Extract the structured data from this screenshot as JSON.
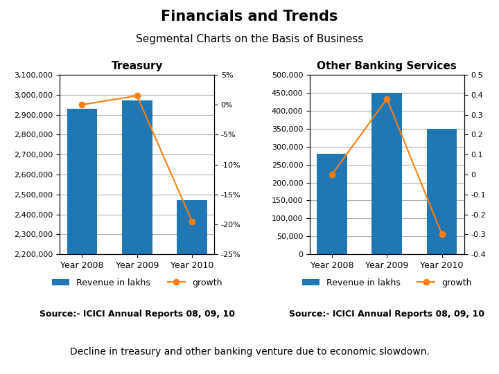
{
  "title": "Financials and Trends",
  "subtitle": "Segmental Charts on the Basis of Business",
  "annotations": [
    "Decline in treasury and other banking venture due to economic slowdown."
  ],
  "chart_data": [
    {
      "type": "bar",
      "title": "Treasury",
      "categories": [
        "Year 2008",
        "Year 2009",
        "Year 2010"
      ],
      "series": [
        {
          "name": "Revenue in lakhs",
          "type": "bar",
          "values": [
            2930000,
            2970000,
            2470000
          ]
        },
        {
          "name": "growth",
          "type": "line",
          "axis": "y2",
          "marker": "circle",
          "values": [
            0.0,
            0.015,
            -0.195
          ]
        }
      ],
      "ylim": [
        2200000,
        3100000
      ],
      "yticks": [
        {
          "value": 2200000,
          "label": "2,200,000"
        },
        {
          "value": 2300000,
          "label": "2,300,000"
        },
        {
          "value": 2400000,
          "label": "2,400,000"
        },
        {
          "value": 2500000,
          "label": "2,500,000"
        },
        {
          "value": 2600000,
          "label": "2,600,000"
        },
        {
          "value": 2700000,
          "label": "2,700,000"
        },
        {
          "value": 2800000,
          "label": "2,800,000"
        },
        {
          "value": 2900000,
          "label": "2,900,000"
        },
        {
          "value": 3000000,
          "label": "3,000,000"
        },
        {
          "value": 3100000,
          "label": "3,100,000"
        }
      ],
      "y2lim": [
        -0.25,
        0.05
      ],
      "y2ticks": [
        {
          "value": -0.25,
          "label": "-25%"
        },
        {
          "value": -0.2,
          "label": "-20%"
        },
        {
          "value": -0.15,
          "label": "-15%"
        },
        {
          "value": -0.1,
          "label": "-10%"
        },
        {
          "value": -0.05,
          "label": "-5%"
        },
        {
          "value": 0.0,
          "label": "0%"
        },
        {
          "value": 0.05,
          "label": "5%"
        }
      ],
      "grid": true,
      "legend": "below",
      "annotations": [
        "Source:- ICICI Annual Reports 08, 09, 10"
      ]
    },
    {
      "type": "bar",
      "title": "Other Banking Services",
      "categories": [
        "Year 2008",
        "Year 2009",
        "Year 2010"
      ],
      "series": [
        {
          "name": "Revenue in lakhs",
          "type": "bar",
          "values": [
            280000,
            450000,
            350000
          ]
        },
        {
          "name": "growth",
          "type": "line",
          "axis": "y2",
          "marker": "circle",
          "values": [
            0.0,
            0.38,
            -0.3
          ]
        }
      ],
      "ylim": [
        0,
        500000
      ],
      "yticks": [
        0,
        {
          "value": 50000,
          "label": "50,000"
        },
        {
          "value": 100000,
          "label": "100,000"
        },
        {
          "value": 150000,
          "label": "150,000"
        },
        {
          "value": 200000,
          "label": "200,000"
        },
        {
          "value": 250000,
          "label": "250,000"
        },
        {
          "value": 300000,
          "label": "300,000"
        },
        {
          "value": 350000,
          "label": "350,000"
        },
        {
          "value": 400000,
          "label": "400,000"
        },
        {
          "value": 450000,
          "label": "450,000"
        },
        {
          "value": 500000,
          "label": "500,000"
        }
      ],
      "y2lim": [
        -0.4,
        0.5
      ],
      "y2ticks": [
        -0.4,
        -0.3,
        -0.2,
        -0.1,
        0,
        0.1,
        0.2,
        0.3,
        0.4,
        0.5
      ],
      "grid": true,
      "legend": "below",
      "annotations": [
        "Source:- ICICI Annual Reports 08, 09, 10"
      ]
    }
  ]
}
